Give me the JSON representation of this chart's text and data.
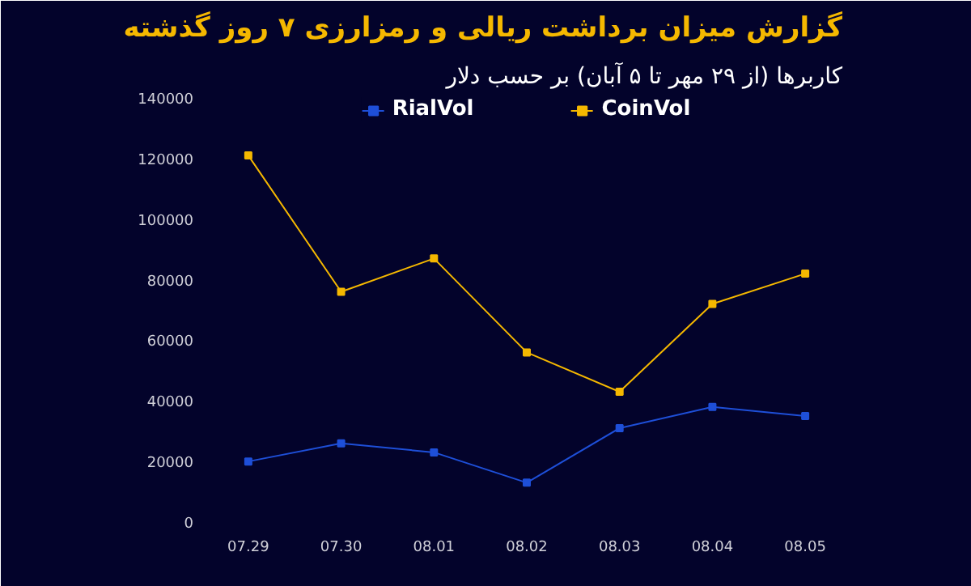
{
  "chart_data": {
    "type": "line",
    "title": "گزارش میزان برداشت ریالی و رمزارزی ۷ روز گذشته",
    "subtitle": "کاربرها (از ۲۹ مهر تا ۵ آبان) بر حسب دلار",
    "categories": [
      "07.29",
      "07.30",
      "08.01",
      "08.02",
      "08.03",
      "08.04",
      "08.05"
    ],
    "series": [
      {
        "name": "RialVol",
        "color": "#1e4fd8",
        "values": [
          20000,
          26000,
          23000,
          13000,
          31000,
          38000,
          35000
        ]
      },
      {
        "name": "CoinVol",
        "color": "#f5b800",
        "values": [
          121000,
          76000,
          87000,
          56000,
          43000,
          72000,
          82000
        ]
      }
    ],
    "ylim": [
      0,
      140000
    ],
    "yticks": [
      0,
      20000,
      40000,
      60000,
      80000,
      100000,
      120000,
      140000
    ],
    "grid": false,
    "legend": "top",
    "marker": "square",
    "line_style": "solid"
  }
}
